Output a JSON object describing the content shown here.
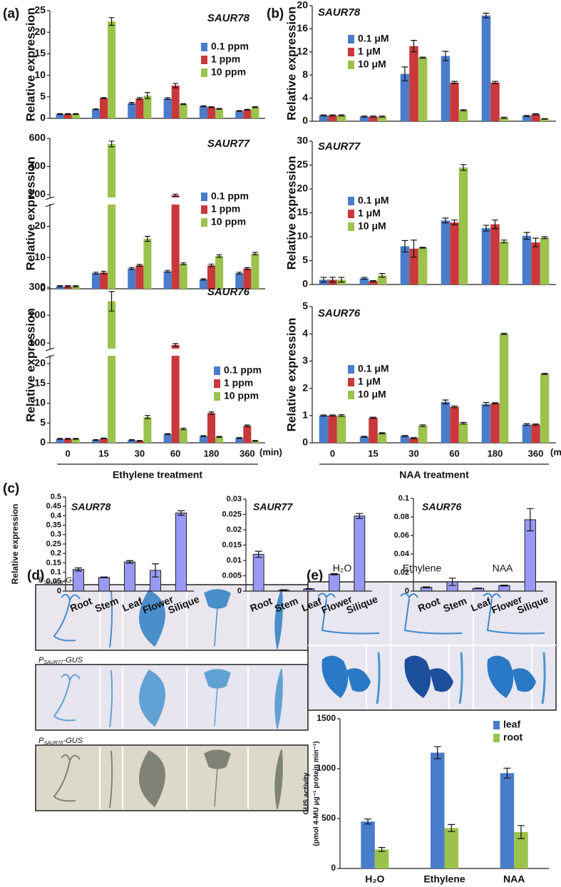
{
  "panel_labels": [
    "(a)",
    "(b)",
    "(c)",
    "(d)",
    "(e)"
  ],
  "gus_constructs": [
    {
      "prefix": "P",
      "gene": "SAUR78",
      "suffix": "-GUS"
    },
    {
      "prefix": "P",
      "gene": "SAUR77",
      "suffix": "-GUS"
    },
    {
      "prefix": "P",
      "gene": "SAUR76",
      "suffix": "-GUS"
    }
  ],
  "gus_treatments": [
    "H₂O",
    "Ethylene",
    "NAA"
  ],
  "chart_data": [
    {
      "type": "bar",
      "title": "SAUR78",
      "ylabel": "Relative expression",
      "ylim": [
        0,
        25
      ],
      "yticks": [
        0,
        5,
        10,
        15,
        20,
        25
      ],
      "series": [
        {
          "name": "0.1 ppm",
          "color": "#4a7ccc",
          "values": [
            1,
            2.1,
            3.5,
            4.6,
            2.8,
            1.7
          ],
          "errors": [
            0.1,
            0.1,
            0.2,
            0.2,
            0.1,
            0.1
          ]
        },
        {
          "name": "1 ppm",
          "color": "#c9383a",
          "values": [
            1,
            4.7,
            4.6,
            7.6,
            2.6,
            2.0
          ],
          "errors": [
            0.1,
            0.1,
            0.2,
            0.5,
            0.1,
            0.1
          ]
        },
        {
          "name": "10 ppm",
          "color": "#9bc34c",
          "values": [
            1,
            22.5,
            5.3,
            3.3,
            2.2,
            2.6
          ],
          "errors": [
            0.1,
            0.9,
            0.7,
            0.1,
            0.1,
            0.1
          ]
        }
      ]
    },
    {
      "type": "bar",
      "title": "SAUR77",
      "ylabel": "Relative expression",
      "ylim": [
        0,
        600
      ],
      "ybreak": [
        27,
        180
      ],
      "yticks": [
        0,
        10,
        20,
        200,
        400,
        600
      ],
      "series": [
        {
          "name": "0.1 ppm",
          "color": "#4a7ccc",
          "values": [
            0.8,
            5,
            6.5,
            5.6,
            3,
            5
          ],
          "errors": [
            0.2,
            0.3,
            0.3,
            0.3,
            0.2,
            0.3
          ]
        },
        {
          "name": "1 ppm",
          "color": "#c9383a",
          "values": [
            0.8,
            5.2,
            7.5,
            195,
            7.5,
            6.5
          ],
          "errors": [
            0.2,
            0.4,
            0.3,
            8,
            0.4,
            0.3
          ]
        },
        {
          "name": "10 ppm",
          "color": "#9bc34c",
          "values": [
            0.8,
            560,
            16,
            8,
            10.5,
            11.3
          ],
          "errors": [
            0.2,
            20,
            0.8,
            0.3,
            0.4,
            0.4
          ]
        }
      ]
    },
    {
      "type": "bar",
      "title": "SAUR76",
      "ylabel": "Relative expression",
      "ylim": [
        0,
        300
      ],
      "ybreak": [
        22,
        80
      ],
      "yticks": [
        0,
        5,
        10,
        15,
        20,
        100,
        200,
        300
      ],
      "categories": [
        "0",
        "15",
        "30",
        "60",
        "180",
        "360"
      ],
      "xunit": "(min)",
      "xlabel": "Ethylene treatment",
      "series": [
        {
          "name": "0.1 ppm",
          "color": "#4a7ccc",
          "values": [
            1,
            0.7,
            0.7,
            2.2,
            1.7,
            1.2
          ],
          "errors": [
            0.1,
            0.1,
            0.1,
            0.1,
            0.1,
            0.1
          ]
        },
        {
          "name": "1 ppm",
          "color": "#c9383a",
          "values": [
            1,
            1.1,
            0.5,
            93,
            7.5,
            4.3
          ],
          "errors": [
            0.1,
            0.1,
            0.1,
            5,
            0.3,
            0.2
          ]
        },
        {
          "name": "10 ppm",
          "color": "#9bc34c",
          "values": [
            1,
            250,
            6.5,
            3.5,
            1.5,
            0.5
          ],
          "errors": [
            0.1,
            35,
            0.4,
            0.2,
            0.1,
            0.1
          ]
        }
      ]
    },
    {
      "type": "bar",
      "title": "SAUR78",
      "ylabel": "Relative expression",
      "ylim": [
        0,
        20
      ],
      "yticks": [
        0,
        4,
        8,
        12,
        16,
        20
      ],
      "series": [
        {
          "name": "0.1 μM",
          "color": "#4a7ccc",
          "values": [
            1,
            0.8,
            8.2,
            11.3,
            18.3,
            0.9
          ],
          "errors": [
            0.1,
            0.1,
            1.2,
            0.8,
            0.4,
            0.1
          ]
        },
        {
          "name": "1 μM",
          "color": "#c9383a",
          "values": [
            1,
            0.8,
            13,
            6.7,
            6.7,
            1.2
          ],
          "errors": [
            0.1,
            0.1,
            1,
            0.2,
            0.2,
            0.1
          ]
        },
        {
          "name": "10 μM",
          "color": "#9bc34c",
          "values": [
            1,
            0.8,
            11,
            1.9,
            0.6,
            0.4
          ],
          "errors": [
            0.1,
            0.1,
            0.1,
            0.1,
            0.1,
            0.05
          ]
        }
      ]
    },
    {
      "type": "bar",
      "title": "SAUR77",
      "ylabel": "Relative expression",
      "ylim": [
        0,
        30
      ],
      "yticks": [
        0,
        5,
        10,
        15,
        20,
        25,
        30
      ],
      "series": [
        {
          "name": "0.1 μM",
          "color": "#4a7ccc",
          "values": [
            1,
            1.3,
            8,
            13.4,
            11.8,
            10.2
          ],
          "errors": [
            0.5,
            0.2,
            1.2,
            0.5,
            0.6,
            0.7
          ]
        },
        {
          "name": "1 μM",
          "color": "#c9383a",
          "values": [
            1,
            0.7,
            7.5,
            13,
            12.6,
            8.8
          ],
          "errors": [
            0.5,
            0.1,
            1.8,
            0.5,
            0.9,
            0.9
          ]
        },
        {
          "name": "10 μM",
          "color": "#9bc34c",
          "values": [
            1,
            1.9,
            7.7,
            24.5,
            9,
            9.8
          ],
          "errors": [
            0.5,
            0.4,
            0.1,
            0.6,
            0.3,
            0.2
          ]
        }
      ]
    },
    {
      "type": "bar",
      "title": "SAUR76",
      "ylabel": "Relative expression",
      "ylim": [
        0,
        5
      ],
      "yticks": [
        0,
        1,
        2,
        3,
        4,
        5
      ],
      "categories": [
        "0",
        "15",
        "30",
        "60",
        "180",
        "360"
      ],
      "xunit": "(min)",
      "xlabel": "NAA treatment",
      "series": [
        {
          "name": "0.1 μM",
          "color": "#4a7ccc",
          "values": [
            1,
            0.22,
            0.25,
            1.5,
            1.42,
            0.67
          ],
          "errors": [
            0.02,
            0.02,
            0.02,
            0.07,
            0.06,
            0.03
          ]
        },
        {
          "name": "1 μM",
          "color": "#c9383a",
          "values": [
            1,
            0.92,
            0.17,
            1.32,
            1.45,
            0.67
          ],
          "errors": [
            0.02,
            0.02,
            0.02,
            0.03,
            0.02,
            0.02
          ]
        },
        {
          "name": "10 μM",
          "color": "#9bc34c",
          "values": [
            1,
            0.35,
            0.63,
            0.72,
            4.0,
            2.53
          ],
          "errors": [
            0.03,
            0.02,
            0.03,
            0.03,
            0.02,
            0.02
          ]
        }
      ]
    },
    {
      "type": "bar",
      "title": "SAUR78",
      "ylabel": "Relative expression",
      "ylim": [
        0,
        0.5
      ],
      "yticks": [
        0,
        0.05,
        0.1,
        0.15,
        0.2,
        0.25,
        0.3,
        0.35,
        0.4,
        0.45,
        0.5
      ],
      "categories": [
        "Root",
        "Stem",
        "Leaf",
        "Flower",
        "Silique"
      ],
      "color": "#9999f5",
      "values": [
        0.115,
        0.073,
        0.155,
        0.11,
        0.415
      ],
      "errors": [
        0.008,
        0.002,
        0.007,
        0.035,
        0.012
      ]
    },
    {
      "type": "bar",
      "title": "SAUR77",
      "ylim": [
        0,
        0.03
      ],
      "yticks": [
        0,
        0.005,
        0.01,
        0.015,
        0.02,
        0.025,
        0.03
      ],
      "categories": [
        "Root",
        "Stem",
        "Leaf",
        "Flower",
        "Silique"
      ],
      "color": "#9999f5",
      "values": [
        0.012,
        0.0003,
        0.0007,
        0.0055,
        0.0245
      ],
      "errors": [
        0.001,
        0.0001,
        0.0001,
        0.0002,
        0.0008
      ]
    },
    {
      "type": "bar",
      "title": "SAUR76",
      "ylim": [
        0,
        0.1
      ],
      "yticks": [
        0,
        0.02,
        0.04,
        0.06,
        0.08,
        0.1
      ],
      "categories": [
        "Root",
        "Stem",
        "Leaf",
        "Flower",
        "Silique"
      ],
      "color": "#9999f5",
      "values": [
        0.004,
        0.01,
        0.003,
        0.006,
        0.077
      ],
      "errors": [
        0.0005,
        0.004,
        0.0003,
        0.0005,
        0.012
      ]
    },
    {
      "type": "bar",
      "ylabel": "GUS activity",
      "ylabel_units": "(pmol 4-MU μg⁻¹ protein min⁻¹)",
      "ylim": [
        0,
        1500
      ],
      "yticks": [
        0,
        500,
        1000,
        1500
      ],
      "categories": [
        "H₂O",
        "Ethylene",
        "NAA"
      ],
      "series": [
        {
          "name": "leaf",
          "color": "#4a7ccc",
          "values": [
            470,
            1160,
            955
          ],
          "errors": [
            25,
            60,
            50
          ]
        },
        {
          "name": "root",
          "color": "#9bc34c",
          "values": [
            190,
            405,
            365
          ],
          "errors": [
            20,
            35,
            65
          ]
        }
      ]
    }
  ]
}
